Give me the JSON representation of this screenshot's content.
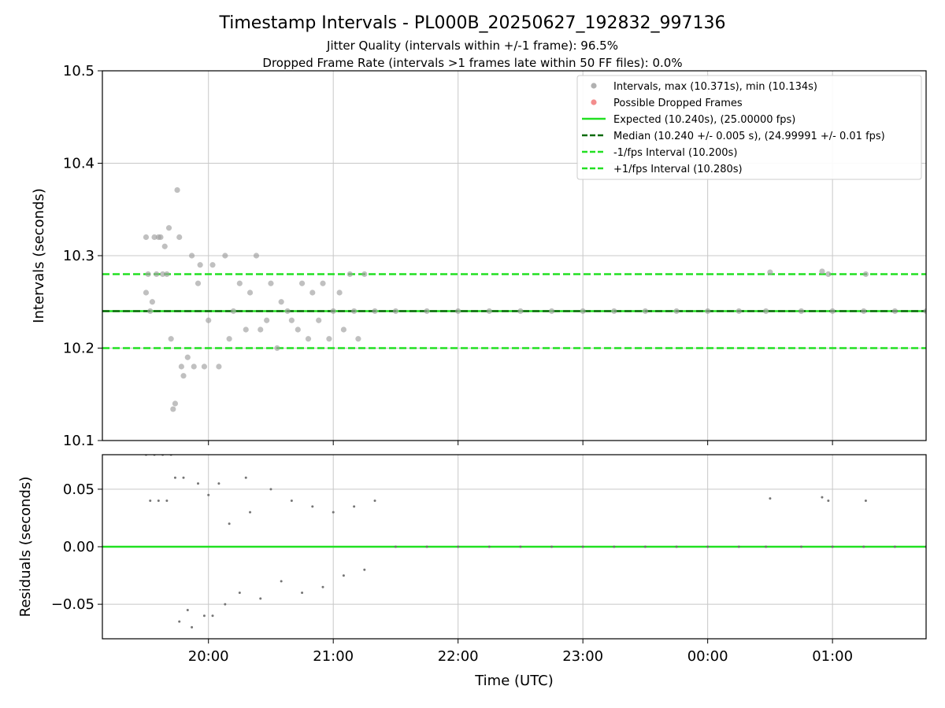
{
  "title": "Timestamp Intervals - PL000B_20250627_192832_997136",
  "subtitle_1": "Jitter Quality (intervals within +/-1 frame): 96.5%",
  "subtitle_2": "Dropped Frame Rate (intervals >1 frames late within 50 FF files): 0.0%",
  "chart_data": [
    {
      "type": "scatter",
      "panel": "top",
      "ylabel": "Intervals (seconds)",
      "ylim": [
        10.1,
        10.5
      ],
      "yticks": [
        "10.1",
        "10.2",
        "10.3",
        "10.4",
        "10.5"
      ],
      "ytick_values": [
        10.1,
        10.2,
        10.3,
        10.4,
        10.5
      ],
      "grid": true,
      "legend_position": "top-right",
      "legend": [
        {
          "label": "Intervals, max (10.371s), min (10.134s)",
          "kind": "marker",
          "color": "#9e9e9e"
        },
        {
          "label": "Possible Dropped Frames",
          "kind": "marker",
          "color": "#f07070"
        },
        {
          "label": "Expected (10.240s), (25.00000 fps)",
          "kind": "solid",
          "color": "#22e022"
        },
        {
          "label": "Median (10.240 +/- 0.005 s), (24.99991 +/- 0.01 fps)",
          "kind": "dashed",
          "color": "#0a6a0a"
        },
        {
          "label": "-1/fps Interval (10.200s)",
          "kind": "dashed",
          "color": "#22e022"
        },
        {
          "label": "+1/fps Interval (10.280s)",
          "kind": "dashed",
          "color": "#22e022"
        }
      ],
      "reference_lines": [
        {
          "name": "Expected",
          "value": 10.24,
          "style": "solid",
          "color": "#22e022"
        },
        {
          "name": "Median",
          "value": 10.24,
          "style": "dashed",
          "color": "#0a6a0a"
        },
        {
          "name": "-1/fps Interval",
          "value": 10.2,
          "style": "dashed",
          "color": "#22e022"
        },
        {
          "name": "+1/fps Interval",
          "value": 10.28,
          "style": "dashed",
          "color": "#22e022"
        }
      ],
      "series": [
        {
          "label_ref": "Intervals",
          "color": "#9e9e9e",
          "x": [
            "19:30",
            "19:30",
            "19:31",
            "19:32",
            "19:33",
            "19:34",
            "19:35",
            "19:36",
            "19:37",
            "19:38",
            "19:39",
            "19:40",
            "19:41",
            "19:42",
            "19:43",
            "19:44",
            "19:45",
            "19:46",
            "19:47",
            "19:48",
            "19:50",
            "19:52",
            "19:53",
            "19:55",
            "19:56",
            "19:58",
            "20:00",
            "20:02",
            "20:05",
            "20:08",
            "20:10",
            "20:12",
            "20:15",
            "20:18",
            "20:20",
            "20:23",
            "20:25",
            "20:28",
            "20:30",
            "20:33",
            "20:35",
            "20:38",
            "20:40",
            "20:43",
            "20:45",
            "20:48",
            "20:50",
            "20:53",
            "20:55",
            "20:58",
            "21:00",
            "21:03",
            "21:05",
            "21:08",
            "21:10",
            "21:12",
            "21:15",
            "21:20",
            "21:30",
            "21:45",
            "22:00",
            "22:15",
            "22:30",
            "22:45",
            "23:00",
            "23:15",
            "23:30",
            "23:45",
            "00:00",
            "00:15",
            "00:28",
            "00:30",
            "00:45",
            "00:55",
            "00:58",
            "01:00",
            "01:15",
            "01:16",
            "01:30",
            "01:45"
          ],
          "y": [
            10.32,
            10.26,
            10.28,
            10.24,
            10.25,
            10.32,
            10.28,
            10.32,
            10.32,
            10.28,
            10.31,
            10.28,
            10.33,
            10.21,
            10.134,
            10.14,
            10.371,
            10.32,
            10.18,
            10.17,
            10.19,
            10.3,
            10.18,
            10.27,
            10.29,
            10.18,
            10.23,
            10.29,
            10.18,
            10.3,
            10.21,
            10.24,
            10.27,
            10.22,
            10.26,
            10.3,
            10.22,
            10.23,
            10.27,
            10.2,
            10.25,
            10.24,
            10.23,
            10.22,
            10.27,
            10.21,
            10.26,
            10.23,
            10.27,
            10.21,
            10.24,
            10.26,
            10.22,
            10.28,
            10.24,
            10.21,
            10.28,
            10.24,
            10.24,
            10.24,
            10.24,
            10.24,
            10.24,
            10.24,
            10.24,
            10.24,
            10.24,
            10.24,
            10.24,
            10.24,
            10.24,
            10.282,
            10.24,
            10.283,
            10.28,
            10.24,
            10.24,
            10.28,
            10.24,
            10.24
          ]
        }
      ]
    },
    {
      "type": "scatter",
      "panel": "bottom",
      "ylabel": "Residuals (seconds)",
      "xlabel": "Time (UTC)",
      "ylim": [
        -0.08,
        0.08
      ],
      "yticks": [
        "−0.05",
        "0.00",
        "0.05"
      ],
      "ytick_values": [
        -0.05,
        0.0,
        0.05
      ],
      "xticks": [
        "20:00",
        "21:00",
        "22:00",
        "23:00",
        "00:00",
        "01:00"
      ],
      "xlim": [
        "19:09",
        "01:45"
      ],
      "grid": true,
      "reference_lines": [
        {
          "name": "zero",
          "value": 0.0,
          "style": "solid",
          "color": "#22e022"
        }
      ],
      "series": [
        {
          "label_ref": "Residuals",
          "color": "#6e6e6e",
          "x": [
            "19:30",
            "19:32",
            "19:34",
            "19:36",
            "19:38",
            "19:40",
            "19:42",
            "19:44",
            "19:46",
            "19:48",
            "19:50",
            "19:52",
            "19:55",
            "19:58",
            "20:00",
            "20:02",
            "20:05",
            "20:08",
            "20:10",
            "20:15",
            "20:18",
            "20:20",
            "20:25",
            "20:30",
            "20:35",
            "20:40",
            "20:45",
            "20:50",
            "20:55",
            "21:00",
            "21:05",
            "21:10",
            "21:15",
            "21:20",
            "21:30",
            "21:45",
            "22:00",
            "22:15",
            "22:30",
            "22:45",
            "23:00",
            "23:15",
            "23:30",
            "23:45",
            "00:00",
            "00:15",
            "00:28",
            "00:30",
            "00:45",
            "00:55",
            "00:58",
            "01:00",
            "01:15",
            "01:16",
            "01:30",
            "01:45"
          ],
          "y": [
            0.08,
            0.04,
            0.08,
            0.04,
            0.08,
            0.04,
            0.08,
            0.06,
            -0.065,
            0.06,
            -0.055,
            -0.07,
            0.055,
            -0.06,
            0.045,
            -0.06,
            0.055,
            -0.05,
            0.02,
            -0.04,
            0.06,
            0.03,
            -0.045,
            0.05,
            -0.03,
            0.04,
            -0.04,
            0.035,
            -0.035,
            0.03,
            -0.025,
            0.035,
            -0.02,
            0.04,
            0.0,
            0.0,
            0.0,
            0.0,
            0.0,
            0.0,
            0.0,
            0.0,
            0.0,
            0.0,
            0.0,
            0.0,
            0.0,
            0.042,
            0.0,
            0.043,
            0.04,
            0.0,
            0.0,
            0.04,
            0.0,
            0.0
          ]
        }
      ]
    }
  ]
}
